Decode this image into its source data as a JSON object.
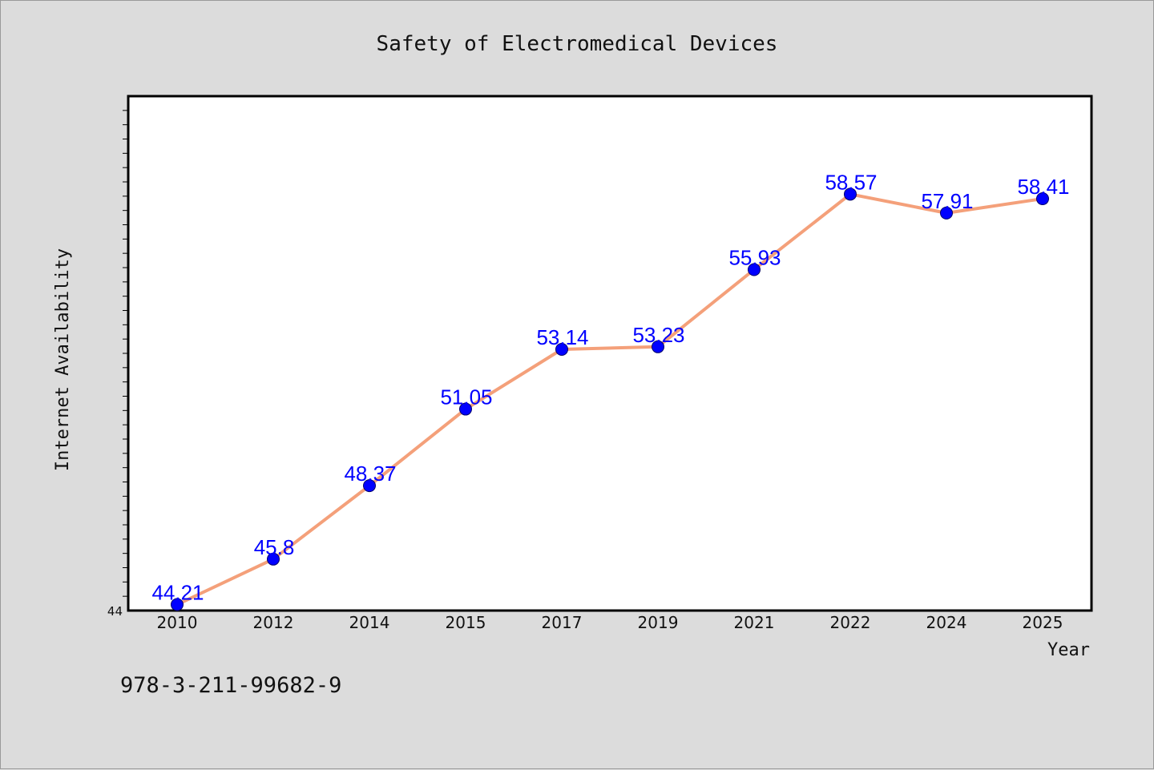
{
  "chart_data": {
    "type": "line",
    "title": "Safety of Electromedical Devices",
    "xlabel": "Year",
    "ylabel": "Internet Availability",
    "categories": [
      "2010",
      "2012",
      "2014",
      "2015",
      "2017",
      "2019",
      "2021",
      "2022",
      "2024",
      "2025"
    ],
    "series": [
      {
        "values": [
          44.21,
          45.8,
          48.37,
          51.05,
          53.14,
          53.23,
          55.93,
          58.57,
          57.91,
          58.41
        ],
        "labels": [
          "44.21",
          "45.8",
          "48.37",
          "51.05",
          "53.14",
          "53.23",
          "55.93",
          "58.57",
          "57.91",
          "58.41"
        ]
      }
    ],
    "ylim": [
      44,
      62
    ],
    "y_tick_labels": [
      "44"
    ],
    "grid": false,
    "line_color": "#f4a07a",
    "marker_color": "#0000ff",
    "label_color": "#0000ff"
  },
  "footer": {
    "isbn": "978-3-211-99682-9"
  }
}
